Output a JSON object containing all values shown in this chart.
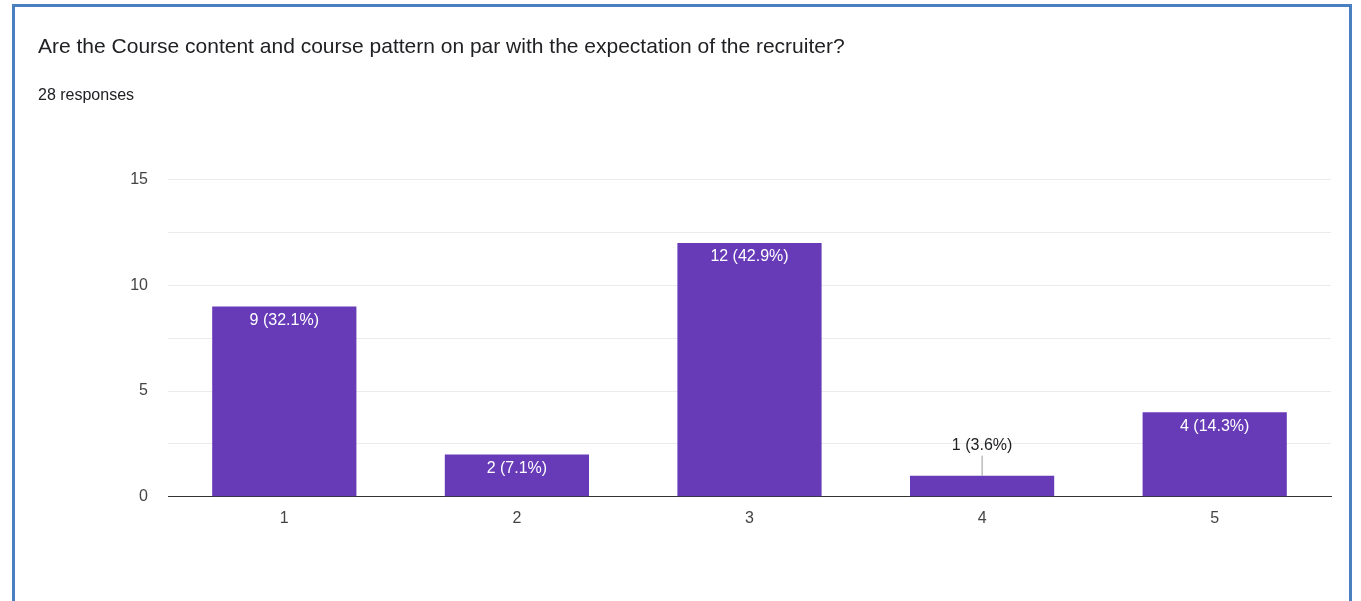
{
  "chart_data": {
    "type": "bar",
    "title": "Are the Course content and course pattern on par with the expectation of the recruiter?",
    "subtitle": "28 responses",
    "categories": [
      "1",
      "2",
      "3",
      "4",
      "5"
    ],
    "values": [
      9,
      2,
      12,
      1,
      4
    ],
    "value_labels": [
      "9 (32.1%)",
      "2 (7.1%)",
      "12 (42.9%)",
      "1 (3.6%)",
      "4 (14.3%)"
    ],
    "color": "#673ab7",
    "ylim": [
      0,
      15
    ],
    "yticks": [
      0,
      {
        "value": 2.5,
        "label": null
      },
      5,
      {
        "value": 7.5,
        "label": null
      },
      10,
      {
        "value": 12.5,
        "label": null
      },
      15
    ],
    "grid": "y",
    "legend": false
  }
}
